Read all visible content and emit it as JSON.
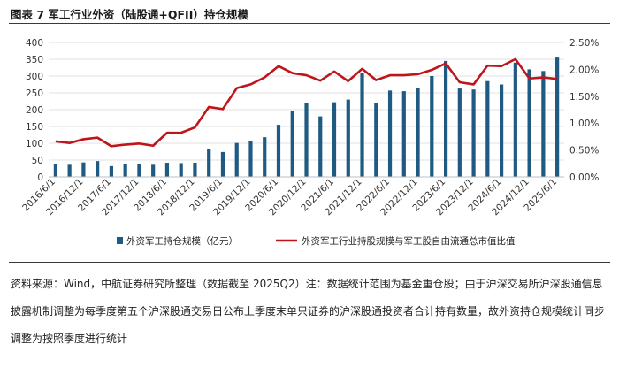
{
  "figure": {
    "title": "图表 7  军工行业外资（陆股通+QFII）持仓规模",
    "note": "资料来源：Wind，中航证券研究所整理（数据截至 2025Q2）注：数据统计范围为基金重仓股；由于沪深交易所沪深股通信息披露机制调整为每季度第五个沪深股通交易日公布上季度末单只证券的沪深股通投资者合计持有数量，故外资持仓规模统计同步调整为按照季度进行统计"
  },
  "chart_data": {
    "type": "bar",
    "title": "",
    "xlabel": "",
    "ylabel": "",
    "categories": [
      "2016/6/1",
      "2016/9/1",
      "2016/12/1",
      "2017/3/1",
      "2017/6/1",
      "2017/9/1",
      "2017/12/1",
      "2018/3/1",
      "2018/6/1",
      "2018/9/1",
      "2018/12/1",
      "2019/3/1",
      "2019/6/1",
      "2019/9/1",
      "2019/12/1",
      "2020/3/1",
      "2020/6/1",
      "2020/9/1",
      "2020/12/1",
      "2021/3/1",
      "2021/6/1",
      "2021/9/1",
      "2021/12/1",
      "2022/3/1",
      "2022/6/1",
      "2022/9/1",
      "2022/12/1",
      "2023/3/1",
      "2023/6/1",
      "2023/9/1",
      "2023/12/1",
      "2024/3/1",
      "2024/6/1",
      "2024/9/1",
      "2024/12/1",
      "2025/3/1",
      "2025/6/1"
    ],
    "x_tick_labels": [
      "2016/6/1",
      "2016/12/1",
      "2017/6/1",
      "2017/12/1",
      "2018/6/1",
      "2018/12/1",
      "2019/6/1",
      "2019/12/1",
      "2020/6/1",
      "2020/12/1",
      "2021/6/1",
      "2021/12/1",
      "2022/6/1",
      "2022/12/1",
      "2023/6/1",
      "2023/12/1",
      "2024/6/1",
      "2024/12/1",
      "2025/6/1"
    ],
    "y_left": {
      "min": 0,
      "max": 400,
      "ticks": [
        "0",
        "50",
        "100",
        "150",
        "200",
        "250",
        "300",
        "350",
        "400"
      ]
    },
    "y_right": {
      "min": 0,
      "max": 0.025,
      "ticks": [
        "0.00%",
        "0.50%",
        "1.00%",
        "1.50%",
        "2.00%",
        "2.50%"
      ]
    },
    "series": [
      {
        "name": "外资军工持仓规模（亿元）",
        "type": "bar",
        "axis": "left",
        "color": "#1f5a83",
        "values": [
          38,
          36,
          43,
          47,
          32,
          38,
          38,
          36,
          42,
          41,
          42,
          82,
          74,
          101,
          108,
          118,
          155,
          196,
          220,
          180,
          222,
          230,
          310,
          220,
          257,
          255,
          265,
          300,
          345,
          263,
          260,
          285,
          275,
          340,
          320,
          315,
          355
        ]
      },
      {
        "name": "外资军工行业持股规模与军工股自由流通总市值比值",
        "type": "line",
        "axis": "right",
        "color": "#c0141b",
        "values": [
          0.0066,
          0.0063,
          0.007,
          0.0073,
          0.0057,
          0.006,
          0.0062,
          0.0058,
          0.0082,
          0.0082,
          0.0092,
          0.013,
          0.0126,
          0.0165,
          0.0172,
          0.0185,
          0.0206,
          0.0193,
          0.0189,
          0.0179,
          0.0196,
          0.0178,
          0.0201,
          0.018,
          0.0189,
          0.0189,
          0.0191,
          0.0199,
          0.0211,
          0.0176,
          0.0172,
          0.0207,
          0.0206,
          0.0219,
          0.0183,
          0.0185,
          0.0182
        ]
      }
    ],
    "legend": "bottom"
  }
}
